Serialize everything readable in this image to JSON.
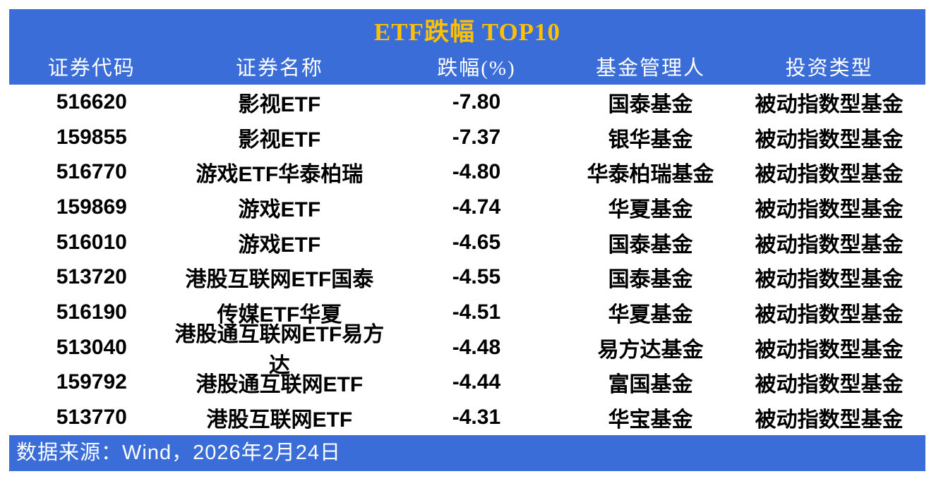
{
  "chart_data": {
    "type": "table",
    "title": "ETF跌幅 TOP10",
    "columns": [
      "证券代码",
      "证券名称",
      "跌幅(%)",
      "基金管理人",
      "投资类型"
    ],
    "rows": [
      [
        "516620",
        "影视ETF",
        "-7.80",
        "国泰基金",
        "被动指数型基金"
      ],
      [
        "159855",
        "影视ETF",
        "-7.37",
        "银华基金",
        "被动指数型基金"
      ],
      [
        "516770",
        "游戏ETF华泰柏瑞",
        "-4.80",
        "华泰柏瑞基金",
        "被动指数型基金"
      ],
      [
        "159869",
        "游戏ETF",
        "-4.74",
        "华夏基金",
        "被动指数型基金"
      ],
      [
        "516010",
        "游戏ETF",
        "-4.65",
        "国泰基金",
        "被动指数型基金"
      ],
      [
        "513720",
        "港股互联网ETF国泰",
        "-4.55",
        "国泰基金",
        "被动指数型基金"
      ],
      [
        "516190",
        "传媒ETF华夏",
        "-4.51",
        "华夏基金",
        "被动指数型基金"
      ],
      [
        "513040",
        "港股通互联网ETF易方达",
        "-4.48",
        "易方达基金",
        "被动指数型基金"
      ],
      [
        "159792",
        "港股通互联网ETF",
        "-4.44",
        "富国基金",
        "被动指数型基金"
      ],
      [
        "513770",
        "港股互联网ETF",
        "-4.31",
        "华宝基金",
        "被动指数型基金"
      ]
    ],
    "source": "数据来源：Wind，2026年2月24日",
    "layout": "grid-off, header and footer bands blue, values column-centered"
  },
  "colors": {
    "band_bg": "#3B6DD8",
    "title_text": "#FFC000",
    "header_text": "#FFFFFF",
    "body_text": "#000000",
    "footer_text": "#FFFFFF",
    "page_bg": "#FFFFFF"
  }
}
